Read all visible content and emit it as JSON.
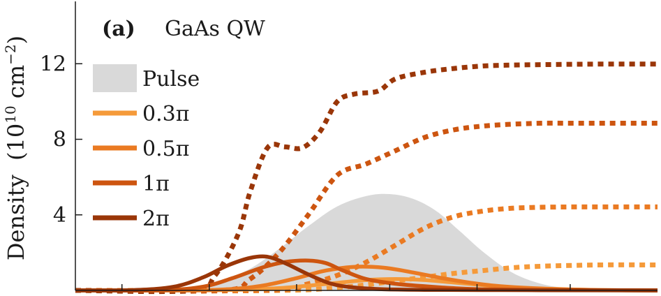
{
  "chart_data": {
    "type": "line",
    "panel_letter": "(a)",
    "panel_name": "GaAs QW",
    "ylabel": "Density",
    "ylabel_unit": "(10^10 cm^-2)",
    "ylabel_unit_parts": {
      "open": "(10",
      "exp1": "10",
      "mid": " cm",
      "exp2": "−2",
      "close": ")"
    },
    "xlim": [
      0,
      1
    ],
    "ylim": [
      0,
      15.3
    ],
    "yticks": [
      4,
      8,
      12
    ],
    "ytick_labels": [
      "4",
      "8",
      "12"
    ],
    "xticks": [
      0.08,
      0.23,
      0.38,
      0.54,
      0.69,
      0.85
    ],
    "grid": false,
    "legend_position": "upper-left",
    "pulse": {
      "name": "Pulse",
      "color": "#d9d9d9",
      "x": [
        0.0,
        0.1,
        0.2,
        0.25,
        0.3,
        0.35,
        0.4,
        0.45,
        0.5,
        0.54,
        0.58,
        0.62,
        0.66,
        0.7,
        0.75,
        0.8,
        0.85,
        0.9,
        1.0
      ],
      "values": [
        0.0,
        0.03,
        0.2,
        0.5,
        1.15,
        2.2,
        3.4,
        4.45,
        5.0,
        5.1,
        4.85,
        4.2,
        3.15,
        2.05,
        0.95,
        0.35,
        0.1,
        0.02,
        0.0
      ]
    },
    "series": [
      {
        "name": "0.3π",
        "color": "#f59a3a",
        "solid": {
          "x": [
            0.0,
            0.2,
            0.3,
            0.35,
            0.4,
            0.45,
            0.5,
            0.55,
            0.6,
            0.65,
            0.7,
            0.75,
            0.8,
            0.9,
            1.0
          ],
          "values": [
            0.0,
            0.0,
            0.05,
            0.12,
            0.25,
            0.4,
            0.55,
            0.6,
            0.55,
            0.42,
            0.28,
            0.15,
            0.08,
            0.02,
            0.0
          ]
        },
        "dotted": {
          "x": [
            0.0,
            0.35,
            0.45,
            0.5,
            0.55,
            0.6,
            0.65,
            0.7,
            0.75,
            0.8,
            0.85,
            0.9,
            1.0
          ],
          "values": [
            0.0,
            0.0,
            0.15,
            0.3,
            0.5,
            0.7,
            0.9,
            1.05,
            1.2,
            1.28,
            1.32,
            1.35,
            1.35
          ]
        }
      },
      {
        "name": "0.5π",
        "color": "#ea7a22",
        "solid": {
          "x": [
            0.0,
            0.2,
            0.28,
            0.33,
            0.38,
            0.43,
            0.48,
            0.53,
            0.58,
            0.63,
            0.68,
            0.73,
            0.8,
            0.9,
            1.0
          ],
          "values": [
            0.0,
            0.0,
            0.1,
            0.3,
            0.65,
            1.05,
            1.25,
            1.2,
            0.95,
            0.65,
            0.4,
            0.22,
            0.1,
            0.02,
            0.0
          ]
        },
        "dotted": {
          "x": [
            0.0,
            0.33,
            0.4,
            0.45,
            0.5,
            0.55,
            0.6,
            0.65,
            0.7,
            0.75,
            0.8,
            0.85,
            0.9,
            1.0
          ],
          "values": [
            0.0,
            0.0,
            0.35,
            0.8,
            1.5,
            2.4,
            3.3,
            3.9,
            4.2,
            4.35,
            4.4,
            4.42,
            4.42,
            4.42
          ]
        }
      },
      {
        "name": "1π",
        "color": "#cd5510",
        "solid": {
          "x": [
            0.0,
            0.15,
            0.22,
            0.27,
            0.32,
            0.36,
            0.4,
            0.43,
            0.46,
            0.5,
            0.55,
            0.6,
            0.65,
            0.7,
            0.8,
            1.0
          ],
          "values": [
            0.0,
            0.02,
            0.2,
            0.65,
            1.2,
            1.5,
            1.58,
            1.45,
            1.05,
            0.6,
            0.35,
            0.22,
            0.12,
            0.06,
            0.02,
            0.0
          ]
        },
        "dotted": {
          "x": [
            0.0,
            0.25,
            0.3,
            0.35,
            0.4,
            0.45,
            0.5,
            0.55,
            0.6,
            0.65,
            0.7,
            0.75,
            0.8,
            0.85,
            0.9,
            1.0
          ],
          "values": [
            0.0,
            0.0,
            0.6,
            2.0,
            4.0,
            6.1,
            6.7,
            7.4,
            8.1,
            8.5,
            8.7,
            8.8,
            8.85,
            8.85,
            8.85,
            8.85
          ]
        }
      },
      {
        "name": "2π",
        "color": "#9a3608",
        "solid": {
          "x": [
            0.0,
            0.1,
            0.17,
            0.22,
            0.26,
            0.3,
            0.33,
            0.36,
            0.4,
            0.44,
            0.48,
            0.53,
            0.6,
            0.7,
            0.8,
            1.0
          ],
          "values": [
            0.0,
            0.02,
            0.2,
            0.7,
            1.3,
            1.72,
            1.78,
            1.45,
            0.85,
            0.35,
            0.15,
            0.06,
            0.03,
            0.02,
            0.01,
            0.0
          ]
        },
        "dotted": {
          "x": [
            0.0,
            0.2,
            0.24,
            0.28,
            0.3,
            0.33,
            0.36,
            0.39,
            0.42,
            0.45,
            0.48,
            0.52,
            0.55,
            0.6,
            0.65,
            0.7,
            0.75,
            0.8,
            0.85,
            0.9,
            1.0
          ],
          "values": [
            0.0,
            0.0,
            0.8,
            3.0,
            5.2,
            7.55,
            7.6,
            7.55,
            8.4,
            10.0,
            10.4,
            10.55,
            11.2,
            11.55,
            11.75,
            11.88,
            11.93,
            11.95,
            11.97,
            11.98,
            11.98
          ]
        }
      }
    ]
  }
}
